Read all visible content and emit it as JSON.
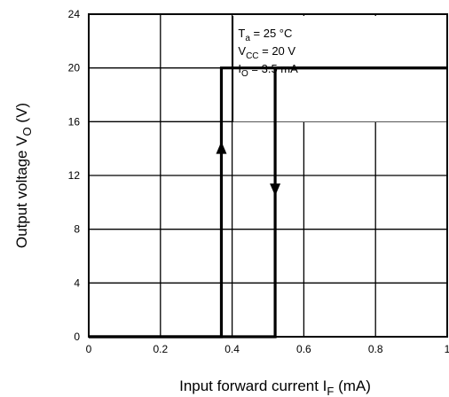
{
  "chart_data": {
    "type": "line",
    "xlabel": {
      "main": "Input forward current  I",
      "sub": "F",
      "unit": "  (mA)"
    },
    "ylabel": {
      "main": "Output voltage  V",
      "sub": "O",
      "unit": "  (V)"
    },
    "xlim": [
      0,
      1
    ],
    "ylim": [
      0,
      24
    ],
    "x_ticks": [
      0,
      0.2,
      0.4,
      0.6,
      0.8,
      1
    ],
    "x_tick_labels": [
      "0",
      "0.2",
      "0.4",
      "0.6",
      "0.8",
      "1"
    ],
    "y_ticks": [
      0,
      4,
      8,
      12,
      16,
      20,
      24
    ],
    "y_tick_labels": [
      "0",
      "4",
      "8",
      "12",
      "16",
      "20",
      "24"
    ],
    "grid": true,
    "series": [
      {
        "direction": "increasing",
        "points": [
          [
            0,
            0
          ],
          [
            0.37,
            0
          ],
          [
            0.37,
            20
          ],
          [
            1,
            20
          ]
        ],
        "arrow": {
          "x": 0.37,
          "y": 14,
          "dir": "up"
        }
      },
      {
        "direction": "decreasing",
        "points": [
          [
            1,
            20
          ],
          [
            0.52,
            20
          ],
          [
            0.52,
            0
          ],
          [
            0,
            0
          ]
        ],
        "arrow": {
          "x": 0.52,
          "y": 11,
          "dir": "down"
        }
      }
    ],
    "annotations": [
      {
        "main": "T",
        "sub": "a",
        "rest": " = 25 °C"
      },
      {
        "main": "V",
        "sub": "CC",
        "rest": " = 20 V"
      },
      {
        "main": "I",
        "sub": "O",
        "rest": " = 3.5 mA"
      }
    ],
    "annotation_placement": "top-right"
  }
}
